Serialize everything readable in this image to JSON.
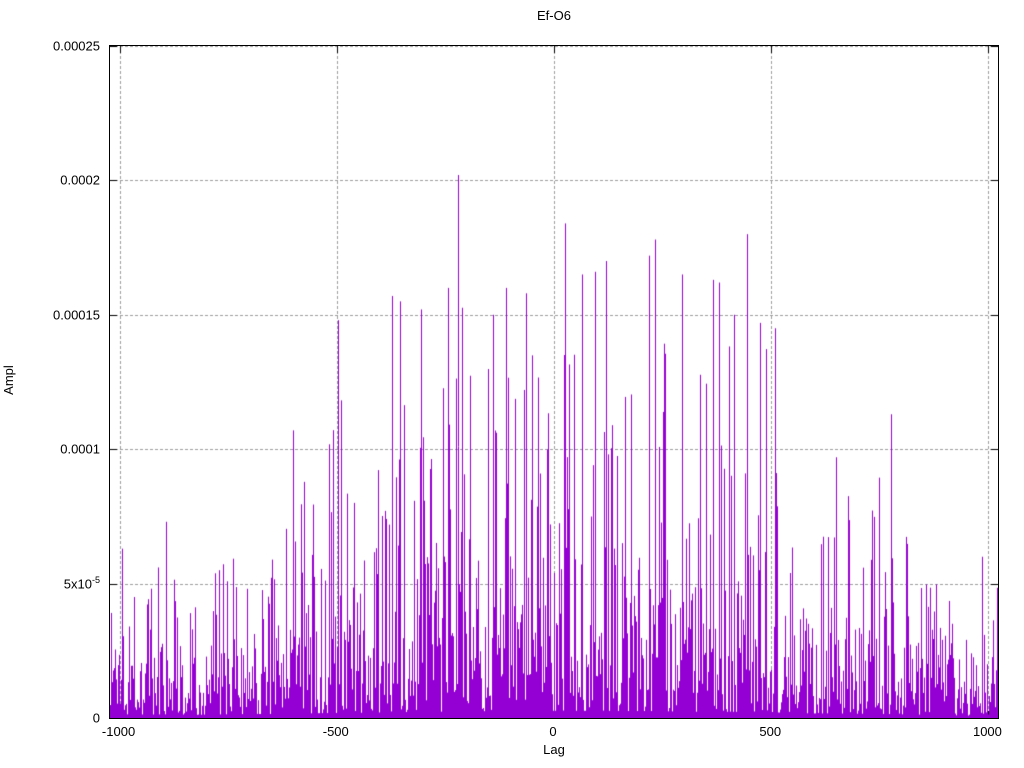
{
  "chart_data": {
    "type": "line",
    "style": "impulses",
    "title": "Ef-O6",
    "xlabel": "Lag",
    "ylabel": "Ampl",
    "xlim": [
      -1022,
      1022
    ],
    "ylim": [
      0,
      0.00025
    ],
    "grid": true,
    "legend": "none",
    "line_color": "#9400D3",
    "grid_color": "#9c9c9c",
    "border_color": "#000000",
    "background_color": "#ffffff",
    "xticks": [
      {
        "value": -1000,
        "label": "-1000"
      },
      {
        "value": -500,
        "label": "-500"
      },
      {
        "value": 0,
        "label": "0"
      },
      {
        "value": 500,
        "label": "500"
      },
      {
        "value": 1000,
        "label": "1000"
      }
    ],
    "yticks": [
      {
        "value": 0,
        "label": "0",
        "exp": ""
      },
      {
        "value": 5e-05,
        "label": "5x10",
        "exp": "-5"
      },
      {
        "value": 0.0001,
        "label": "0.0001",
        "exp": ""
      },
      {
        "value": 0.00015,
        "label": "0.00015",
        "exp": ""
      },
      {
        "value": 0.0002,
        "label": "0.0002",
        "exp": ""
      },
      {
        "value": 0.00025,
        "label": "0.00025",
        "exp": ""
      }
    ],
    "noise_seed": 1337,
    "envelope": [
      {
        "x": -1022,
        "base": 2.8e-05,
        "peak": 6.3e-05
      },
      {
        "x": -995,
        "base": 2.8e-05,
        "peak": 6.3e-05
      },
      {
        "x": -930,
        "base": 2.6e-05,
        "peak": 5.5e-05
      },
      {
        "x": -880,
        "base": 2.8e-05,
        "peak": 7.3e-05
      },
      {
        "x": -820,
        "base": 2.4e-05,
        "peak": 5.2e-05
      },
      {
        "x": -750,
        "base": 2.8e-05,
        "peak": 6.7e-05
      },
      {
        "x": -700,
        "base": 3e-05,
        "peak": 6.5e-05
      },
      {
        "x": -640,
        "base": 3e-05,
        "peak": 6.8e-05
      },
      {
        "x": -595,
        "base": 3.3e-05,
        "peak": 0.000107
      },
      {
        "x": -540,
        "base": 3.6e-05,
        "peak": 8e-05
      },
      {
        "x": -497,
        "base": 3.8e-05,
        "peak": 0.000148
      },
      {
        "x": -460,
        "base": 3.8e-05,
        "peak": 0.000112
      },
      {
        "x": -430,
        "base": 4e-05,
        "peak": 0.000115
      },
      {
        "x": -390,
        "base": 4.2e-05,
        "peak": 9.5e-05
      },
      {
        "x": -355,
        "base": 4.4e-05,
        "peak": 0.000158
      },
      {
        "x": -305,
        "base": 4.6e-05,
        "peak": 0.000152
      },
      {
        "x": -280,
        "base": 4.6e-05,
        "peak": 0.00013
      },
      {
        "x": -245,
        "base": 4.8e-05,
        "peak": 0.00016
      },
      {
        "x": -218,
        "base": 4.8e-05,
        "peak": 0.000202
      },
      {
        "x": -180,
        "base": 5e-05,
        "peak": 0.000145
      },
      {
        "x": -140,
        "base": 5e-05,
        "peak": 0.00015
      },
      {
        "x": -108,
        "base": 5.2e-05,
        "peak": 0.000162
      },
      {
        "x": -60,
        "base": 5.2e-05,
        "peak": 0.000158
      },
      {
        "x": -20,
        "base": 5.4e-05,
        "peak": 0.00013
      },
      {
        "x": 25,
        "base": 5.4e-05,
        "peak": 0.000184
      },
      {
        "x": 65,
        "base": 5.4e-05,
        "peak": 0.000165
      },
      {
        "x": 120,
        "base": 5.4e-05,
        "peak": 0.00017
      },
      {
        "x": 165,
        "base": 5.2e-05,
        "peak": 0.000142
      },
      {
        "x": 220,
        "base": 5.2e-05,
        "peak": 0.000178
      },
      {
        "x": 262,
        "base": 5e-05,
        "peak": 0.000148
      },
      {
        "x": 297,
        "base": 4.8e-05,
        "peak": 0.000165
      },
      {
        "x": 350,
        "base": 4.6e-05,
        "peak": 0.000155
      },
      {
        "x": 382,
        "base": 4.6e-05,
        "peak": 0.000162
      },
      {
        "x": 445,
        "base": 4.6e-05,
        "peak": 0.00018
      },
      {
        "x": 478,
        "base": 4.4e-05,
        "peak": 0.00015
      },
      {
        "x": 508,
        "base": 4.2e-05,
        "peak": 0.000145
      },
      {
        "x": 550,
        "base": 3.8e-05,
        "peak": 0.000122
      },
      {
        "x": 600,
        "base": 3.4e-05,
        "peak": 8.5e-05
      },
      {
        "x": 652,
        "base": 3.4e-05,
        "peak": 9.7e-05
      },
      {
        "x": 700,
        "base": 3.2e-05,
        "peak": 8.8e-05
      },
      {
        "x": 770,
        "base": 3e-05,
        "peak": 0.000113
      },
      {
        "x": 825,
        "base": 2.6e-05,
        "peak": 6.5e-05
      },
      {
        "x": 875,
        "base": 2.4e-05,
        "peak": 6e-05
      },
      {
        "x": 925,
        "base": 2e-05,
        "peak": 4.8e-05
      },
      {
        "x": 962,
        "base": 1.8e-05,
        "peak": 4.2e-05
      },
      {
        "x": 1000,
        "base": 2.4e-05,
        "peak": 6.2e-05
      },
      {
        "x": 1022,
        "base": 2.6e-05,
        "peak": 6.2e-05
      }
    ],
    "notable_peaks": [
      {
        "x": -220,
        "y": 0.000202
      },
      {
        "x": 25,
        "y": 0.000184
      },
      {
        "x": 445,
        "y": 0.00018
      },
      {
        "x": 232,
        "y": 0.000178
      },
      {
        "x": 218,
        "y": 0.000172
      },
      {
        "x": 120,
        "y": 0.00017
      },
      {
        "x": 95,
        "y": 0.000166
      },
      {
        "x": 65,
        "y": 0.000165
      },
      {
        "x": 295,
        "y": 0.000165
      },
      {
        "x": 365,
        "y": 0.000163
      },
      {
        "x": 380,
        "y": 0.000162
      },
      {
        "x": -110,
        "y": 0.00016
      },
      {
        "x": -245,
        "y": 0.00016
      },
      {
        "x": -65,
        "y": 0.000158
      },
      {
        "x": -372,
        "y": 0.000157
      },
      {
        "x": -355,
        "y": 0.000155
      },
      {
        "x": -305,
        "y": 0.000152
      },
      {
        "x": -140,
        "y": 0.00015
      },
      {
        "x": -497,
        "y": 0.000148
      },
      {
        "x": 475,
        "y": 0.000147
      },
      {
        "x": 508,
        "y": 0.000145
      },
      {
        "x": 415,
        "y": 0.00015
      },
      {
        "x": 775,
        "y": 0.000113
      },
      {
        "x": -600,
        "y": 0.000107
      },
      {
        "x": 650,
        "y": 9.7e-05
      },
      {
        "x": -893,
        "y": 7.3e-05
      },
      {
        "x": -995,
        "y": 6.3e-05
      },
      {
        "x": 985,
        "y": 6e-05
      }
    ]
  }
}
